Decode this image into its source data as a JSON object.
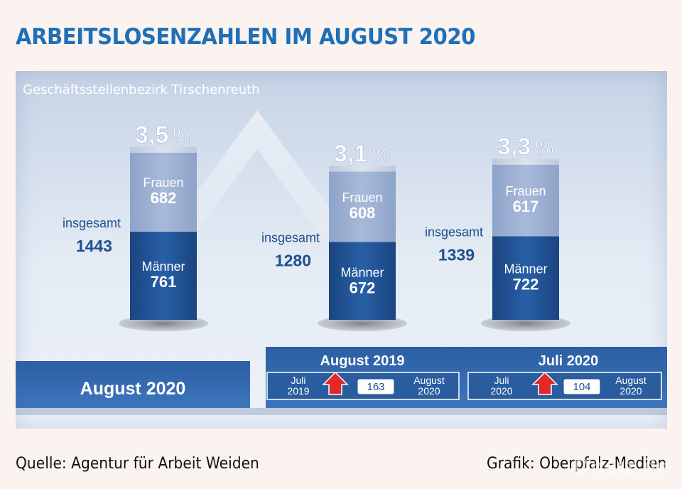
{
  "title": "ARBEITSLOSENZAHLEN IM AUGUST 2020",
  "subtitle": "Geschäftsstellenbezirk Tirschenreuth",
  "chart_data": {
    "type": "bar",
    "stacked": true,
    "categories": [
      "August 2020",
      "August 2019",
      "Juli 2020"
    ],
    "rates": [
      "3,5",
      "3,1",
      "3,3"
    ],
    "rate_unit": "%",
    "series": [
      {
        "name": "Männer",
        "values": [
          761,
          672,
          722
        ]
      },
      {
        "name": "Frauen",
        "values": [
          682,
          608,
          617
        ]
      }
    ],
    "totals_label": "insgesamt",
    "totals": [
      1443,
      1280,
      1339
    ]
  },
  "period_labels": {
    "current": "August 2020",
    "compare_1": "August 2019",
    "compare_2": "Juli 2020"
  },
  "comparisons": [
    {
      "from": "Juli\n2019",
      "to": "August\n2020",
      "change": "163",
      "direction": "up"
    },
    {
      "from": "Juli\n2020",
      "to": "August\n2020",
      "change": "104",
      "direction": "up"
    }
  ],
  "colors": {
    "title": "#1f6fb8",
    "men": "#1e4f93",
    "women": "#97abd0",
    "arrow": "#e02a2a",
    "label": "#1f4f8e"
  },
  "source": "Quelle: Agentur für Arbeit Weiden",
  "credit": "Grafik: Oberpfalz-Medien",
  "watermark": "Onetz.de"
}
